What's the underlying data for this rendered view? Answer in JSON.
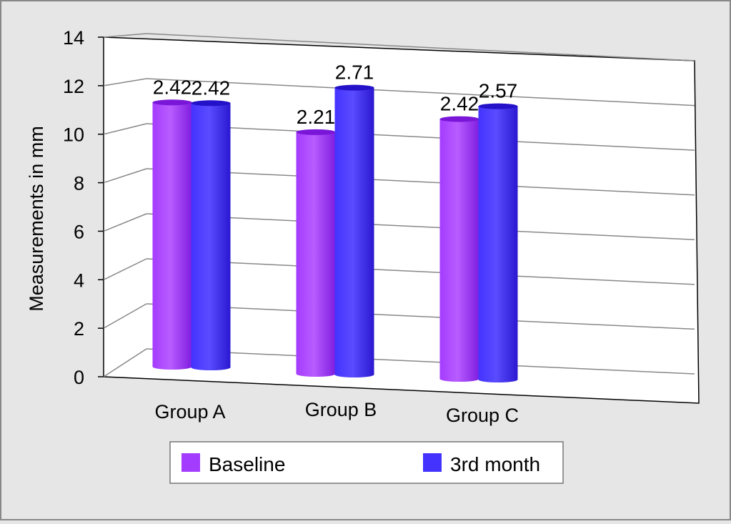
{
  "chart_data": {
    "type": "bar",
    "ylabel": "Measurements in mm",
    "yticks": [
      "0",
      "2",
      "4",
      "6",
      "8",
      "10",
      "12",
      "14"
    ],
    "ylim": [
      0,
      14
    ],
    "categories": [
      "Group A",
      "Group B",
      "Group C"
    ],
    "series": [
      {
        "name": "Baseline",
        "color": "#a43cff",
        "values": [
          11.7,
          10.7,
          11.5
        ],
        "labels": [
          "2.42",
          "2.21",
          "2.42"
        ]
      },
      {
        "name": "3rd month",
        "color": "#4433ff",
        "values": [
          11.7,
          12.7,
          12.1
        ],
        "labels": [
          "2.42",
          "2.71",
          "2.57"
        ]
      }
    ],
    "grid": true,
    "legend_position": "bottom"
  }
}
